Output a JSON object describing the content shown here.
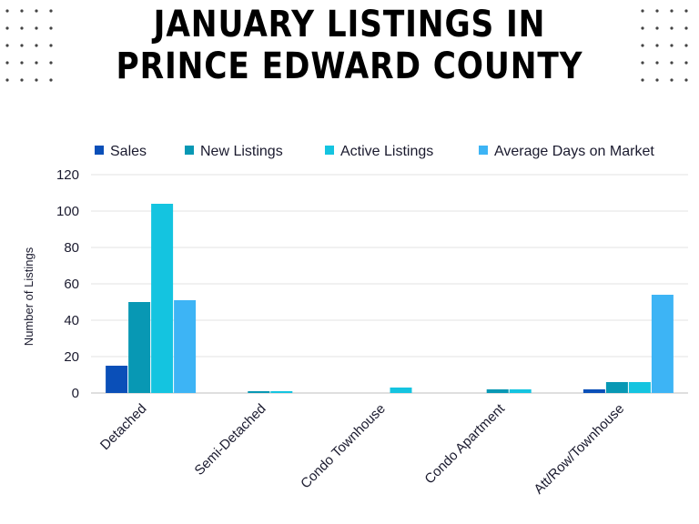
{
  "title_lines": [
    "JANUARY LISTINGS IN",
    "PRINCE EDWARD COUNTY"
  ],
  "chart_data": {
    "type": "bar",
    "title": "JANUARY LISTINGS IN PRINCE EDWARD COUNTY",
    "ylabel": "Number of Listings",
    "xlabel": "",
    "ylim": [
      0,
      120
    ],
    "yticks": [
      0,
      20,
      40,
      60,
      80,
      100,
      120
    ],
    "grid": true,
    "legend_position": "top",
    "categories": [
      "Detached",
      "Semi-Detached",
      "Condo Townhouse",
      "Condo Apartment",
      "Att/Row/Townhouse"
    ],
    "series": [
      {
        "name": "Sales",
        "color": "#0a4fb8",
        "values": [
          15,
          0,
          0,
          0,
          2
        ]
      },
      {
        "name": "New Listings",
        "color": "#0898b4",
        "values": [
          50,
          1,
          0,
          2,
          6
        ]
      },
      {
        "name": "Active Listings",
        "color": "#14c4e0",
        "values": [
          104,
          1,
          3,
          2,
          6
        ]
      },
      {
        "name": "Average Days on Market",
        "color": "#3db4f5",
        "values": [
          51,
          0,
          0,
          0,
          54
        ]
      }
    ]
  }
}
